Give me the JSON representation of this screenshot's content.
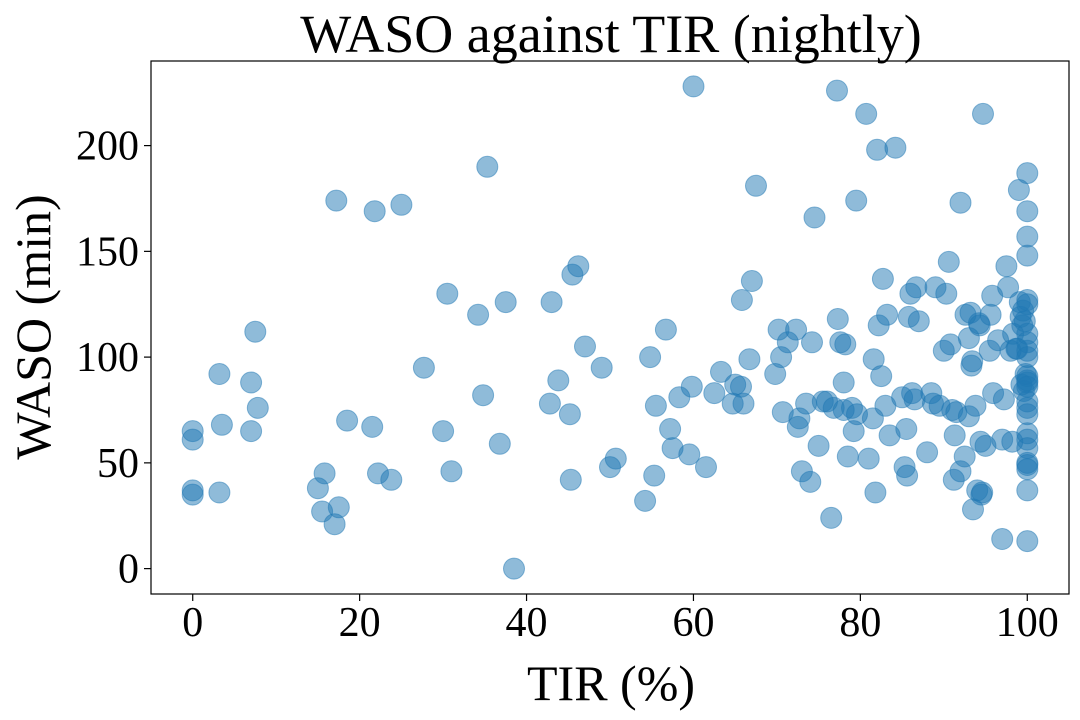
{
  "chart_data": {
    "type": "scatter",
    "title": "WASO against TIR (nightly)",
    "xlabel": "TIR (%)",
    "ylabel": "WASO (min)",
    "xlim": [
      -5,
      105
    ],
    "ylim": [
      -12,
      240
    ],
    "xticks": [
      0,
      20,
      40,
      60,
      80,
      100
    ],
    "yticks": [
      0,
      50,
      100,
      150,
      200
    ],
    "xtick_labels": [
      "0",
      "20",
      "40",
      "60",
      "80",
      "100"
    ],
    "ytick_labels": [
      "0",
      "50",
      "100",
      "150",
      "200"
    ],
    "grid": false,
    "color": "#1f77b4",
    "alpha": 0.5,
    "points": [
      [
        0,
        65
      ],
      [
        0,
        61
      ],
      [
        0,
        37
      ],
      [
        0,
        35
      ],
      [
        3.2,
        92
      ],
      [
        3.5,
        68
      ],
      [
        3.2,
        36
      ],
      [
        7,
        88
      ],
      [
        7,
        65
      ],
      [
        7.5,
        112
      ],
      [
        7.8,
        76
      ],
      [
        15,
        38
      ],
      [
        15.5,
        27
      ],
      [
        15.8,
        45
      ],
      [
        17,
        21
      ],
      [
        17.2,
        174
      ],
      [
        17.5,
        29
      ],
      [
        18.5,
        70
      ],
      [
        21.5,
        67
      ],
      [
        21.8,
        169
      ],
      [
        22.2,
        45
      ],
      [
        23.8,
        42
      ],
      [
        25,
        172
      ],
      [
        27.7,
        95
      ],
      [
        30,
        65
      ],
      [
        30.5,
        130
      ],
      [
        31,
        46
      ],
      [
        34.2,
        120
      ],
      [
        34.8,
        82
      ],
      [
        35.3,
        190
      ],
      [
        36.8,
        59
      ],
      [
        37.5,
        126
      ],
      [
        38.5,
        0
      ],
      [
        42.8,
        78
      ],
      [
        43,
        126
      ],
      [
        43.8,
        89
      ],
      [
        45.2,
        73
      ],
      [
        45.3,
        42
      ],
      [
        45.5,
        139
      ],
      [
        46.2,
        143
      ],
      [
        47,
        105
      ],
      [
        49,
        95
      ],
      [
        50,
        48
      ],
      [
        50.7,
        52
      ],
      [
        54.2,
        32
      ],
      [
        54.8,
        100
      ],
      [
        55.3,
        44
      ],
      [
        55.5,
        77
      ],
      [
        56.7,
        113
      ],
      [
        57.2,
        66
      ],
      [
        57.5,
        57
      ],
      [
        58.3,
        81
      ],
      [
        59.5,
        54
      ],
      [
        59.8,
        86
      ],
      [
        60,
        228
      ],
      [
        61.5,
        48
      ],
      [
        62.5,
        83
      ],
      [
        63.3,
        93
      ],
      [
        64.7,
        78
      ],
      [
        65,
        87
      ],
      [
        65.7,
        86
      ],
      [
        65.8,
        127
      ],
      [
        66,
        78
      ],
      [
        66.7,
        99
      ],
      [
        67,
        136
      ],
      [
        67.5,
        181
      ],
      [
        69.8,
        92
      ],
      [
        70.2,
        113
      ],
      [
        70.5,
        100
      ],
      [
        70.7,
        74
      ],
      [
        71.3,
        107
      ],
      [
        72.3,
        113
      ],
      [
        72.5,
        67
      ],
      [
        72.7,
        71
      ],
      [
        73,
        46
      ],
      [
        73.5,
        78
      ],
      [
        74,
        41
      ],
      [
        74.2,
        107
      ],
      [
        74.5,
        166
      ],
      [
        75,
        58
      ],
      [
        75.5,
        79
      ],
      [
        76,
        79
      ],
      [
        76.5,
        24
      ],
      [
        76.8,
        76
      ],
      [
        77.2,
        226
      ],
      [
        77.3,
        118
      ],
      [
        77.6,
        107
      ],
      [
        78,
        75
      ],
      [
        78,
        88
      ],
      [
        78.2,
        106
      ],
      [
        78.5,
        53
      ],
      [
        79,
        76
      ],
      [
        79.2,
        65
      ],
      [
        79.5,
        174
      ],
      [
        79.6,
        73
      ],
      [
        80.7,
        215
      ],
      [
        81,
        52
      ],
      [
        81.5,
        71
      ],
      [
        81.6,
        99
      ],
      [
        81.8,
        36
      ],
      [
        82,
        198
      ],
      [
        82.2,
        115
      ],
      [
        82.5,
        91
      ],
      [
        82.7,
        137
      ],
      [
        83,
        77
      ],
      [
        83.2,
        120
      ],
      [
        83.5,
        63
      ],
      [
        84.2,
        199
      ],
      [
        85,
        81
      ],
      [
        85.3,
        48
      ],
      [
        85.5,
        66
      ],
      [
        85.6,
        44
      ],
      [
        85.8,
        119
      ],
      [
        86,
        130
      ],
      [
        86.2,
        83
      ],
      [
        86.5,
        80
      ],
      [
        86.7,
        133
      ],
      [
        87,
        117
      ],
      [
        88,
        55
      ],
      [
        88.5,
        83
      ],
      [
        88.7,
        78
      ],
      [
        89,
        133
      ],
      [
        89.5,
        77
      ],
      [
        90,
        103
      ],
      [
        90.3,
        130
      ],
      [
        90.6,
        145
      ],
      [
        90.8,
        106
      ],
      [
        91,
        75
      ],
      [
        91.2,
        42
      ],
      [
        91.3,
        63
      ],
      [
        91.5,
        74
      ],
      [
        92,
        46
      ],
      [
        92,
        173
      ],
      [
        92.5,
        53
      ],
      [
        92.6,
        120
      ],
      [
        93,
        72
      ],
      [
        93,
        109
      ],
      [
        93.2,
        121
      ],
      [
        93.3,
        96
      ],
      [
        93.4,
        98
      ],
      [
        93.5,
        28
      ],
      [
        93.8,
        77
      ],
      [
        94,
        37
      ],
      [
        94.2,
        116
      ],
      [
        94.3,
        115
      ],
      [
        94.4,
        60
      ],
      [
        94.5,
        35
      ],
      [
        94.6,
        36
      ],
      [
        94.7,
        215
      ],
      [
        95,
        58
      ],
      [
        95.5,
        103
      ],
      [
        95.6,
        120
      ],
      [
        95.8,
        129
      ],
      [
        95.9,
        83
      ],
      [
        96.5,
        108
      ],
      [
        97,
        61
      ],
      [
        97,
        14
      ],
      [
        97.2,
        80
      ],
      [
        97.5,
        143
      ],
      [
        97.7,
        133
      ],
      [
        98,
        103
      ],
      [
        98.2,
        60
      ],
      [
        98.3,
        111
      ],
      [
        98.7,
        104
      ],
      [
        98.8,
        104
      ],
      [
        99,
        179
      ],
      [
        99.1,
        126
      ],
      [
        99.2,
        119
      ],
      [
        99.3,
        87
      ],
      [
        99.4,
        115
      ],
      [
        99.5,
        122
      ],
      [
        99.6,
        84
      ],
      [
        99.7,
        117
      ],
      [
        99.8,
        92
      ],
      [
        100,
        187
      ],
      [
        100,
        169
      ],
      [
        100,
        157
      ],
      [
        100,
        148
      ],
      [
        100,
        127
      ],
      [
        100,
        125
      ],
      [
        100,
        111
      ],
      [
        100,
        107
      ],
      [
        100,
        103
      ],
      [
        100,
        100
      ],
      [
        100,
        91
      ],
      [
        100,
        89
      ],
      [
        100,
        88
      ],
      [
        100,
        86
      ],
      [
        100,
        79
      ],
      [
        100,
        76
      ],
      [
        100,
        73
      ],
      [
        100,
        64
      ],
      [
        100,
        61
      ],
      [
        100,
        57
      ],
      [
        100,
        50
      ],
      [
        100,
        49
      ],
      [
        100,
        47
      ],
      [
        100,
        37
      ],
      [
        100,
        13
      ]
    ]
  }
}
